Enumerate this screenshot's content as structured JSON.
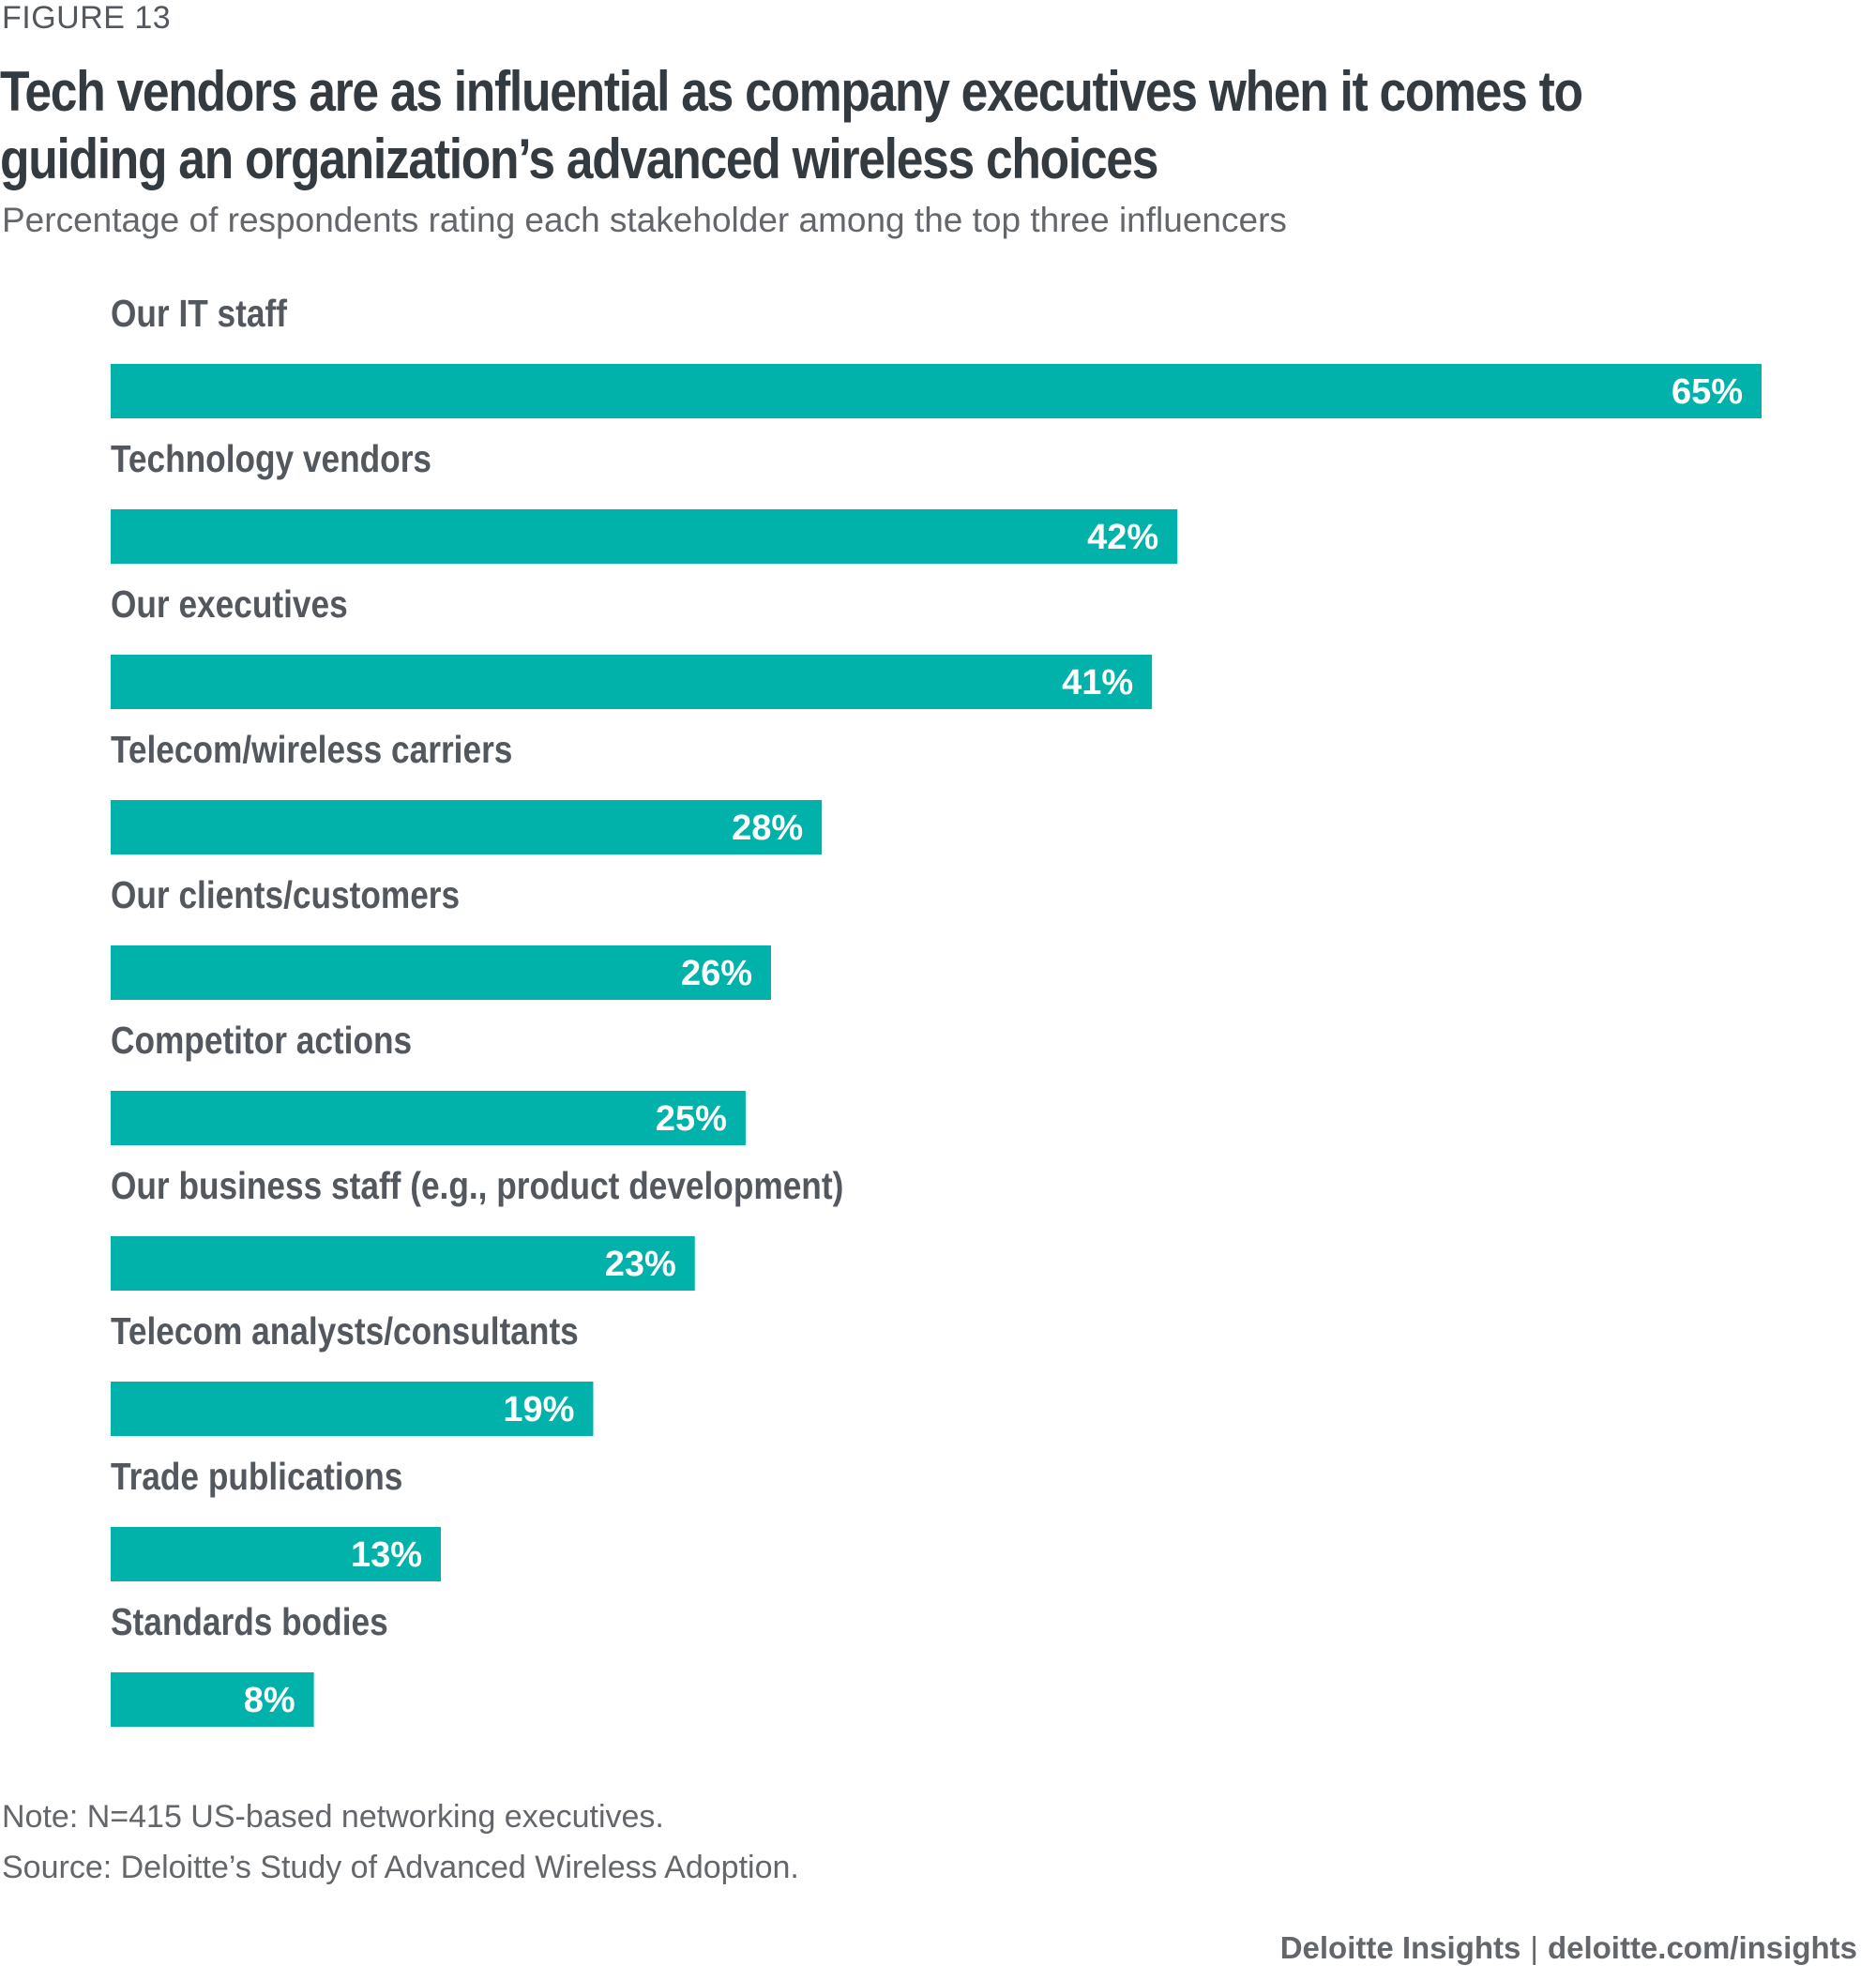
{
  "figure_label": "FIGURE 13",
  "title_lines": [
    "Tech vendors are as influential as company executives when it comes to",
    "guiding an organization’s advanced wireless choices"
  ],
  "subtitle": "Percentage of respondents rating each stakeholder among the top three influencers",
  "colors": {
    "bar": "#00b2a9",
    "label": "#53585e",
    "value_text": "#ffffff"
  },
  "chart_data": {
    "type": "bar",
    "orientation": "horizontal",
    "categories": [
      "Our IT staff",
      "Technology vendors",
      "Our executives",
      "Telecom/wireless carriers",
      "Our clients/customers",
      "Competitor actions",
      "Our business staff (e.g., product development)",
      "Telecom analysts/consultants",
      "Trade publications",
      "Standards bodies"
    ],
    "values": [
      65,
      42,
      41,
      28,
      26,
      25,
      23,
      19,
      13,
      8
    ],
    "value_labels": [
      "65%",
      "42%",
      "41%",
      "28%",
      "26%",
      "25%",
      "23%",
      "19%",
      "13%",
      "8%"
    ],
    "unit": "%",
    "xlim": [
      0,
      65
    ],
    "grid": false,
    "legend": "none"
  },
  "notes": {
    "note": "Note: N=415 US-based networking executives.",
    "source": "Source: Deloitte’s Study of Advanced Wireless Adoption."
  },
  "branding": {
    "left": "Deloitte Insights",
    "separator": "|",
    "right": "deloitte.com/insights"
  }
}
